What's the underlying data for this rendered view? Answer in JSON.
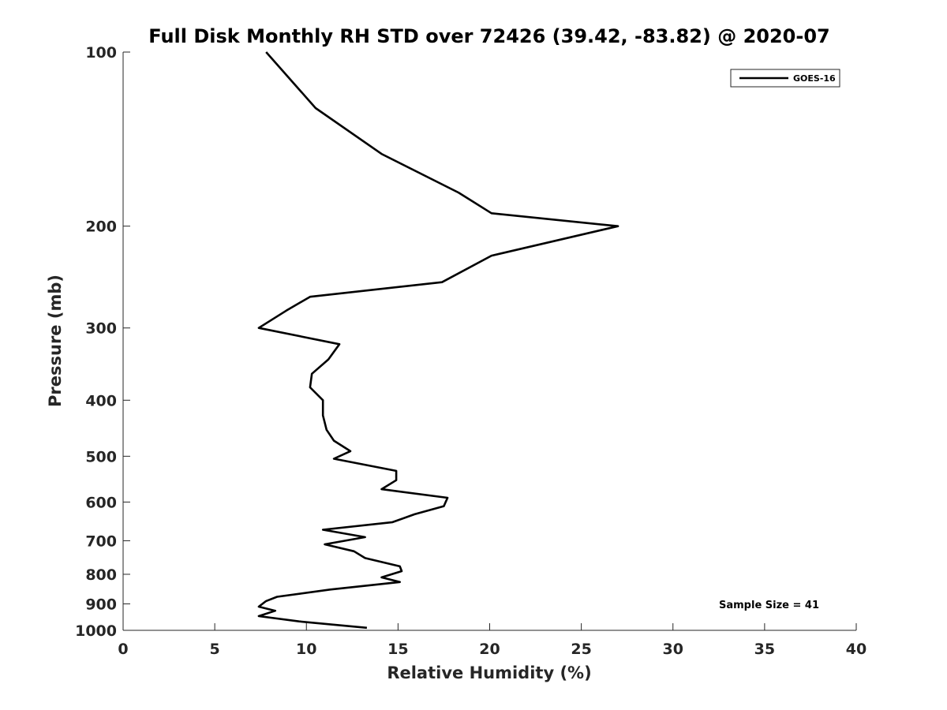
{
  "chart_data": {
    "type": "line",
    "title": "Full Disk Monthly RH STD over 72426 (39.42, -83.82) @ 2020-07",
    "xlabel": "Relative Humidity (%)",
    "ylabel": "Pressure (mb)",
    "xlim": [
      0,
      40
    ],
    "ylim": [
      100,
      1000
    ],
    "yscale": "log",
    "yreversed": true,
    "xticks": [
      "0",
      "5",
      "10",
      "15",
      "20",
      "25",
      "30",
      "35",
      "40"
    ],
    "yticks": [
      "100",
      "200",
      "300",
      "400",
      "500",
      "600",
      "700",
      "800",
      "900",
      "1000"
    ],
    "grid": false,
    "legend_position": "top-right",
    "annotation": "Sample Size = 41",
    "series": [
      {
        "name": "GOES-16",
        "color": "#000000",
        "points": [
          [
            7.8,
            100
          ],
          [
            10.5,
            125
          ],
          [
            14.1,
            150
          ],
          [
            18.3,
            175
          ],
          [
            20.1,
            190
          ],
          [
            27.0,
            200
          ],
          [
            20.1,
            225
          ],
          [
            17.4,
            250
          ],
          [
            10.2,
            265
          ],
          [
            8.9,
            280
          ],
          [
            7.4,
            300
          ],
          [
            11.8,
            320
          ],
          [
            11.2,
            340
          ],
          [
            10.3,
            360
          ],
          [
            10.2,
            380
          ],
          [
            10.9,
            400
          ],
          [
            10.9,
            425
          ],
          [
            11.1,
            450
          ],
          [
            11.5,
            470
          ],
          [
            12.4,
            490
          ],
          [
            11.5,
            505
          ],
          [
            14.9,
            530
          ],
          [
            14.9,
            550
          ],
          [
            14.1,
            570
          ],
          [
            17.7,
            590
          ],
          [
            17.5,
            610
          ],
          [
            15.9,
            630
          ],
          [
            14.7,
            650
          ],
          [
            10.9,
            670
          ],
          [
            13.2,
            690
          ],
          [
            11.0,
            710
          ],
          [
            12.6,
            730
          ],
          [
            13.2,
            750
          ],
          [
            15.1,
            775
          ],
          [
            15.2,
            790
          ],
          [
            14.1,
            810
          ],
          [
            15.1,
            825
          ],
          [
            11.3,
            850
          ],
          [
            8.4,
            875
          ],
          [
            7.8,
            890
          ],
          [
            7.4,
            910
          ],
          [
            8.3,
            925
          ],
          [
            7.4,
            945
          ],
          [
            9.6,
            965
          ],
          [
            13.3,
            990
          ]
        ]
      }
    ]
  }
}
